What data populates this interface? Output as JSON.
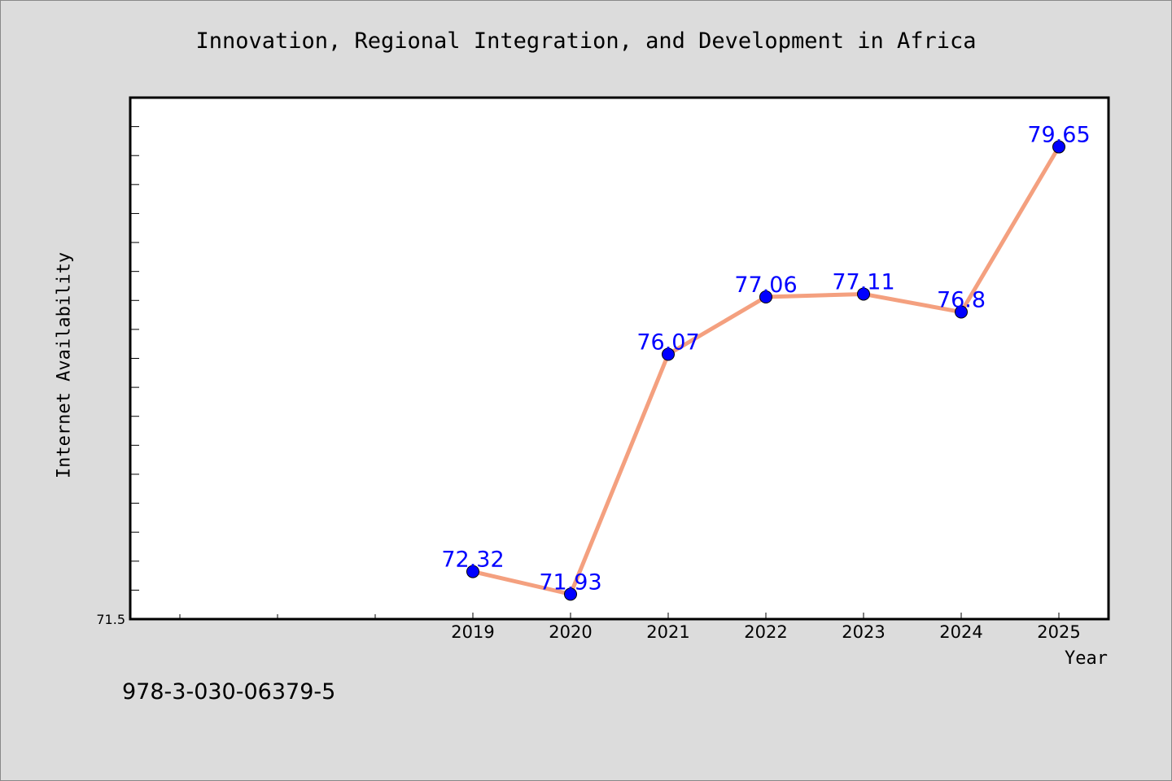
{
  "chart_data": {
    "type": "line",
    "title": "Innovation, Regional Integration, and Development in Africa",
    "xlabel": "Year",
    "ylabel": "Internet Availability",
    "categories": [
      "2019",
      "2020",
      "2021",
      "2022",
      "2023",
      "2024",
      "2025"
    ],
    "series": [
      {
        "values": [
          72.32,
          71.93,
          76.07,
          77.06,
          77.11,
          76.8,
          79.65
        ]
      }
    ],
    "data_labels": [
      "72.32",
      "71.93",
      "76.07",
      "77.06",
      "77.11",
      "76.8",
      "79.65"
    ],
    "y_tick_labels": [
      "71.5"
    ],
    "ylim": [
      71.5,
      80.5
    ],
    "grid": false,
    "legend": "none",
    "colors": {
      "line": "#f4a07f",
      "marker": "#0000ff",
      "labels": "#0000ff"
    }
  },
  "footnote": "978-3-030-06379-5"
}
